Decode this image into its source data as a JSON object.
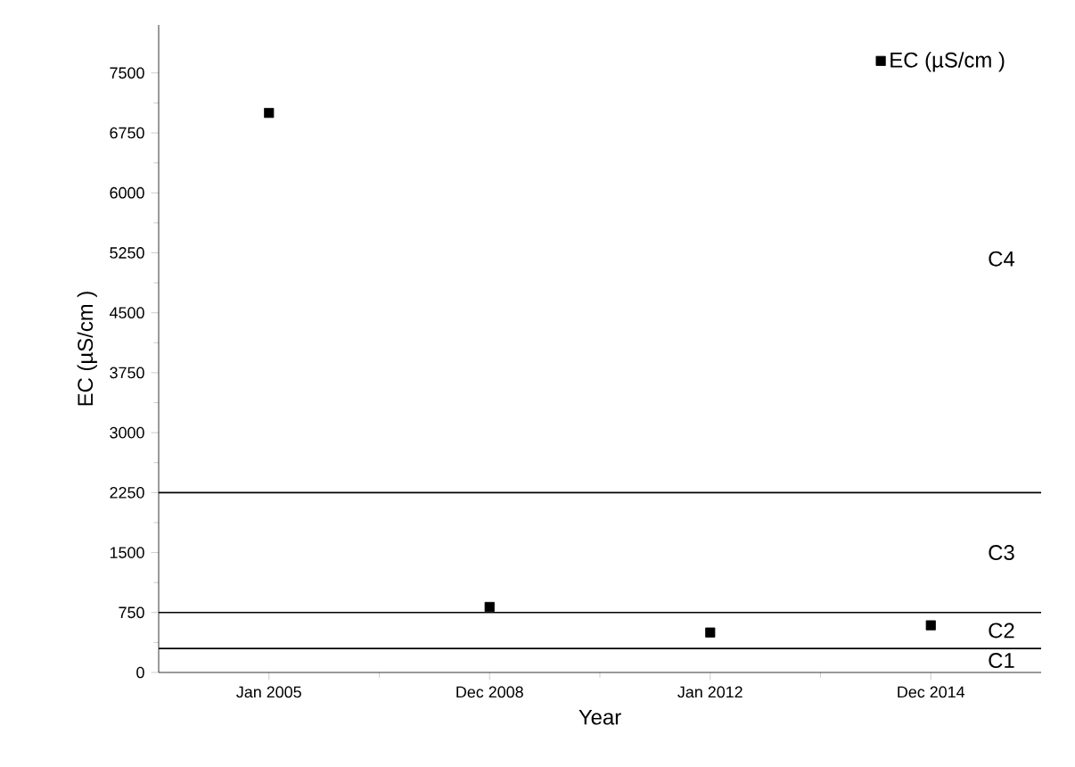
{
  "chart_data": {
    "type": "scatter",
    "xlabel": "Year",
    "ylabel": "EC (µS/cm )",
    "categories": [
      "Jan 2005",
      "Dec 2008",
      "Jan 2012",
      "Dec 2014"
    ],
    "series": [
      {
        "name": "EC (µS/cm )",
        "color": "#000000",
        "values": [
          7000,
          820,
          500,
          590
        ]
      }
    ],
    "ylim": [
      0,
      8100
    ],
    "yticks": [
      0,
      750,
      1500,
      2250,
      3000,
      3750,
      4500,
      5250,
      6000,
      6750,
      7500
    ],
    "marker": "square",
    "legend": "top right",
    "grid": false,
    "ref_lines": [
      {
        "axis": "y",
        "value": 300
      },
      {
        "axis": "y",
        "value": 750
      },
      {
        "axis": "y",
        "value": 2250
      }
    ],
    "annotations": [
      "C1",
      "C2",
      "C3",
      "C4"
    ]
  }
}
